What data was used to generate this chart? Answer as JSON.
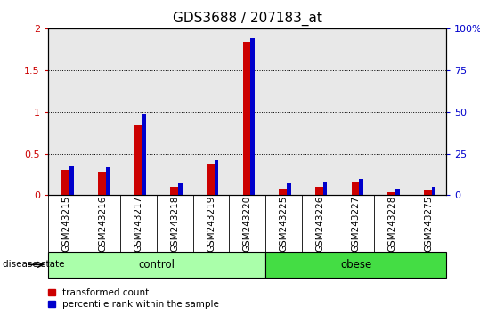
{
  "title": "GDS3688 / 207183_at",
  "samples": [
    "GSM243215",
    "GSM243216",
    "GSM243217",
    "GSM243218",
    "GSM243219",
    "GSM243220",
    "GSM243225",
    "GSM243226",
    "GSM243227",
    "GSM243228",
    "GSM243275"
  ],
  "transformed_count": [
    0.3,
    0.28,
    0.84,
    0.1,
    0.38,
    1.84,
    0.08,
    0.1,
    0.17,
    0.04,
    0.06
  ],
  "pr_pct": [
    18,
    17,
    49,
    7,
    21,
    94,
    7,
    7.5,
    10,
    4,
    5
  ],
  "groups": [
    {
      "label": "control",
      "start": 0,
      "end": 5,
      "color": "#aaffaa"
    },
    {
      "label": "obese",
      "start": 6,
      "end": 10,
      "color": "#44dd44"
    }
  ],
  "group_label": "disease state",
  "ylim_left": [
    0,
    2
  ],
  "ylim_right": [
    0,
    100
  ],
  "yticks_left": [
    0,
    0.5,
    1.0,
    1.5,
    2.0
  ],
  "ytick_labels_left": [
    "0",
    "0.5",
    "1",
    "1.5",
    "2"
  ],
  "yticks_right": [
    0,
    25,
    50,
    75,
    100
  ],
  "ytick_labels_right": [
    "0",
    "25",
    "50",
    "75",
    "100%"
  ],
  "bar_color_red": "#cc0000",
  "bar_color_blue": "#0000cc",
  "bar_width": 0.25,
  "grid_style": "dotted",
  "grid_color": "#000000",
  "plot_bg_color": "#e8e8e8",
  "sample_box_bg": "#d0d0d0",
  "legend_label_red": "transformed count",
  "legend_label_blue": "percentile rank within the sample",
  "title_fontsize": 11,
  "axis_fontsize": 7.5,
  "tick_fontsize": 8
}
